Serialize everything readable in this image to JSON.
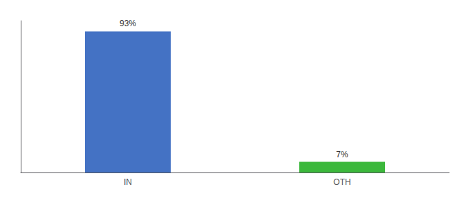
{
  "chart_data": {
    "type": "bar",
    "categories": [
      "IN",
      "OTH"
    ],
    "values": [
      93,
      7
    ],
    "value_labels": [
      "93%",
      "7%"
    ],
    "colors": [
      "#4472c4",
      "#3cb83c"
    ],
    "ylim": [
      0,
      100
    ],
    "data_labels": true,
    "tick_labels": "x",
    "grid": false
  }
}
